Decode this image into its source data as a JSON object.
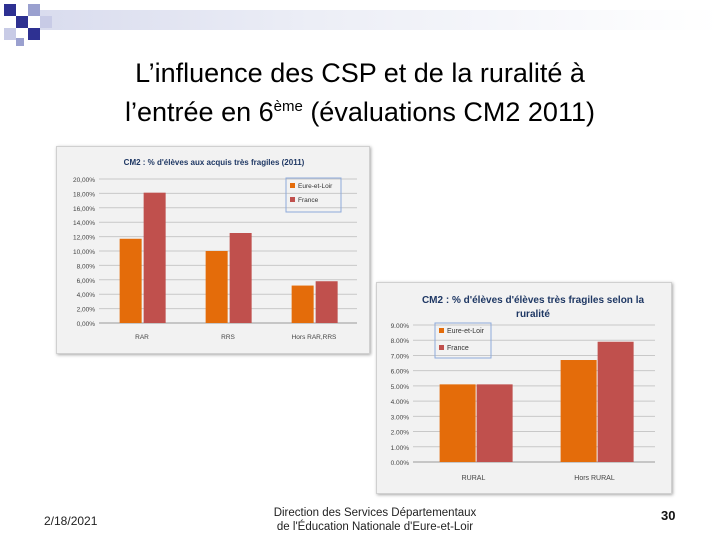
{
  "slide": {
    "title_line1": "L’influence des CSP et de la ruralité à",
    "title_line2_pre": "l’entrée en 6",
    "title_sup": "ème",
    "title_line2_post": " (évaluations CM2 2011)",
    "date": "2/18/2021",
    "footer_line1": "Direction des Services Départementaux",
    "footer_line2": "de l'Éducation Nationale d'Eure-et-Loir",
    "page_number": "30"
  },
  "colors": {
    "series1": "#e46c0a",
    "series2": "#c0504d",
    "title_text": "#1f3864",
    "decor_dark": "#2e3192",
    "decor_light": "#9aa0cf"
  },
  "chart_data": [
    {
      "type": "bar",
      "title": "CM2 : % d'élèves aux acquis très fragiles (2011)",
      "title_lines": [
        "CM2 : % d'élèves aux acquis très fragiles (2011)"
      ],
      "categories": [
        "RAR",
        "RRS",
        "Hors RAR,RRS"
      ],
      "series": [
        {
          "name": "Eure-et-Loir",
          "values": [
            11.7,
            10.0,
            5.2
          ]
        },
        {
          "name": "France",
          "values": [
            18.1,
            12.5,
            5.8
          ]
        }
      ],
      "ylim": [
        0,
        20
      ],
      "yticks": [
        "0,00%",
        "2,00%",
        "4,00%",
        "6,00%",
        "8,00%",
        "10,00%",
        "12,00%",
        "14,00%",
        "16,00%",
        "18,00%",
        "20,00%"
      ],
      "grid": true,
      "legend": "top-right"
    },
    {
      "type": "bar",
      "title": "CM2 : % d'élèves d'élèves très fragiles selon la ruralité",
      "title_lines": [
        "CM2 : % d'élèves d'élèves très fragiles selon la",
        "ruralité"
      ],
      "categories": [
        "RURAL",
        "Hors RURAL"
      ],
      "series": [
        {
          "name": "Eure-et-Loir",
          "values": [
            5.1,
            6.7
          ]
        },
        {
          "name": "France",
          "values": [
            5.1,
            7.9
          ]
        }
      ],
      "ylim": [
        0,
        9
      ],
      "yticks": [
        "0.00%",
        "1.00%",
        "2.00%",
        "3.00%",
        "4.00%",
        "5.00%",
        "6.00%",
        "7.00%",
        "8.00%",
        "9.00%"
      ],
      "grid": true,
      "legend": "top-left"
    }
  ]
}
